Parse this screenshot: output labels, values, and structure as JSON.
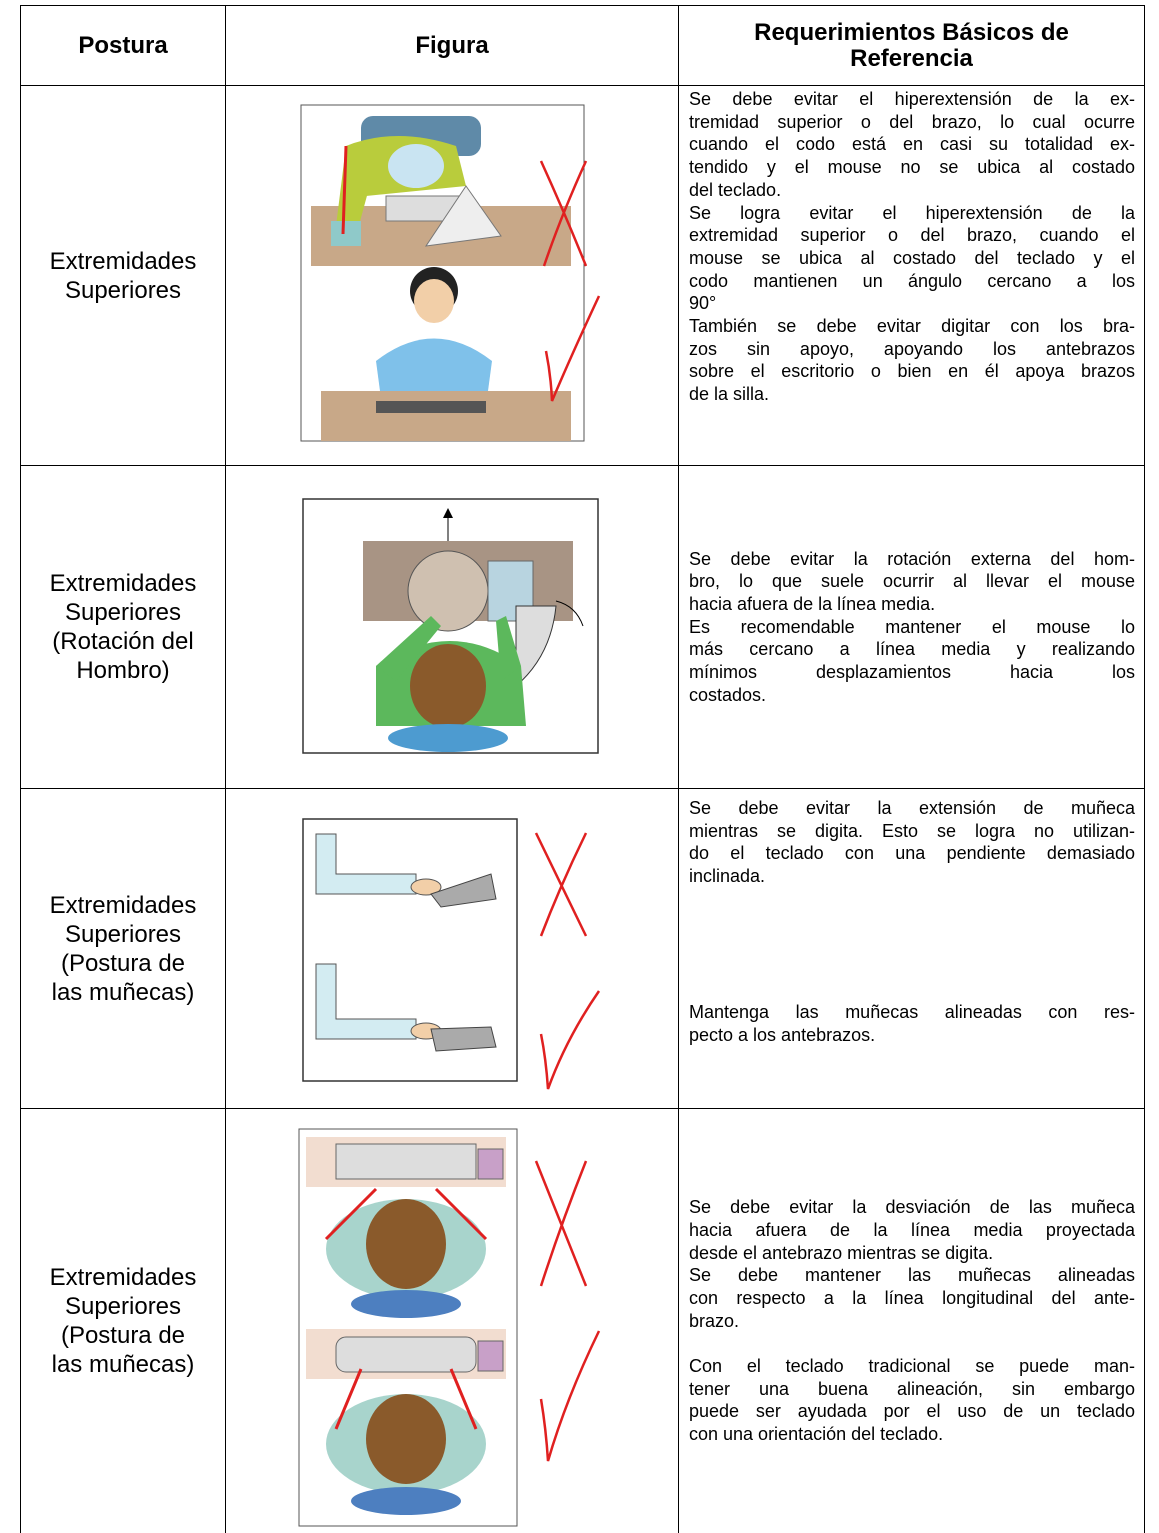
{
  "table": {
    "headers": [
      "Postura",
      "Figura",
      "Requerimientos Básicos de Referencia"
    ],
    "rows": [
      {
        "posture": [
          "Extremidades",
          "Superiores"
        ],
        "description": [
          [
            "Se debe evitar el hiperextensión de la ex-",
            "tremidad superior o del brazo, lo cual ocurre",
            "cuando el codo está en casi su totalidad ex-",
            "tendido y el mouse no se ubica al costado",
            "del teclado."
          ],
          [
            "Se logra evitar el hiperextensión de la",
            "extremidad superior o del brazo, cuando el",
            "mouse se ubica al costado del teclado y el",
            "codo mantienen un ángulo cercano a los",
            "90°"
          ],
          [
            "También se debe evitar digitar con los bra-",
            "zos sin apoyo, apoyando los antebrazos",
            "sobre el escritorio o bien en él apoya brazos",
            "de la silla."
          ]
        ]
      },
      {
        "posture": [
          "Extremidades",
          "Superiores",
          "(Rotación del",
          "Hombro)"
        ],
        "description": [
          [
            "Se debe evitar la rotación externa del hom-",
            "bro, lo que suele ocurrir al llevar el mouse",
            "hacia afuera de la línea media."
          ],
          [
            "Es recomendable mantener el mouse lo",
            "más cercano a línea media y realizando",
            "mínimos desplazamientos hacia los",
            "costados."
          ]
        ]
      },
      {
        "posture": [
          "Extremidades",
          "Superiores",
          "(Postura de",
          "las muñecas)"
        ],
        "description": [
          [
            "Se debe evitar la extensión de muñeca",
            "mientras se digita. Esto se logra no utilizan-",
            "do el teclado con una pendiente demasiado",
            "inclinada."
          ],
          [
            "Mantenga las muñecas alineadas con res-",
            "pecto a los antebrazos."
          ]
        ]
      },
      {
        "posture": [
          "Extremidades",
          "Superiores",
          "(Postura de",
          "las muñecas)"
        ],
        "description": [
          [
            "Se debe evitar la desviación de las muñeca",
            "hacia afuera de la línea media proyectada",
            "desde el antebrazo mientras se digita."
          ],
          [
            "Se debe mantener las muñecas alineadas",
            "con respecto a la línea longitudinal del ante-",
            "brazo."
          ],
          [
            "Con el teclado tradicional se puede man-",
            "tener una buena alineación, sin embargo",
            "puede ser ayudada por el uso de un teclado",
            "con una orientación del teclado."
          ]
        ]
      }
    ]
  }
}
